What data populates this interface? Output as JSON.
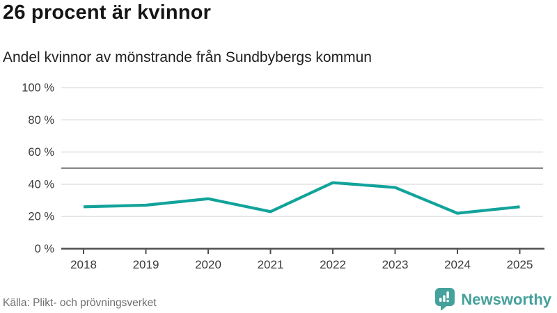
{
  "header": {
    "title": "26 procent är kvinnor",
    "subtitle": "Andel kvinnor av mönstrande från Sundbybergs kommun"
  },
  "footer": {
    "source": "Källa: Plikt- och prövningsverket",
    "brand_name": "Newsworthy"
  },
  "colors": {
    "line": "#12a39b",
    "brand_teal": "#45a19b",
    "grid": "#e3e3e3",
    "reference_line": "#828282",
    "axis": "#4f4f4f",
    "tick_text": "#3a3a3a",
    "title_text": "#151515",
    "source_text": "#6f6f6f"
  },
  "chart_data": {
    "type": "line",
    "title": "26 procent är kvinnor",
    "subtitle": "Andel kvinnor av mönstrande från Sundbybergs kommun",
    "x": [
      "2018",
      "2019",
      "2020",
      "2021",
      "2022",
      "2023",
      "2024",
      "2025"
    ],
    "series": [
      {
        "name": "Andel kvinnor av mönstrande",
        "values": [
          26,
          27,
          31,
          23,
          41,
          38,
          22,
          26
        ],
        "color": "#12a39b"
      }
    ],
    "unit": "%",
    "ylim": [
      0,
      100
    ],
    "yticks": [
      100,
      80,
      60,
      40,
      20,
      0
    ],
    "ytick_labels": [
      "100 %",
      "80 %",
      "60 %",
      "40 %",
      "20 %",
      "0 %"
    ],
    "reference_line": 50,
    "grid": true,
    "legend": "none"
  }
}
